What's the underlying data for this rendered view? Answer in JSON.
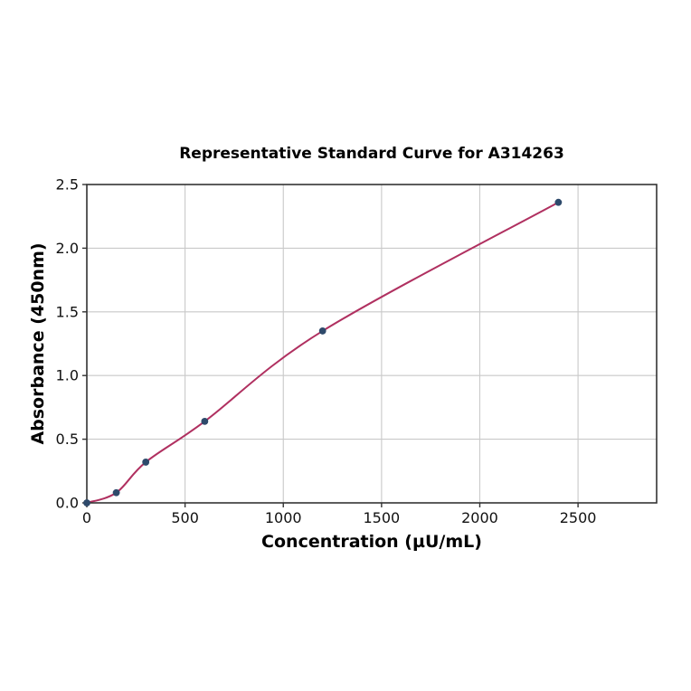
{
  "figure": {
    "background": "#ffffff"
  },
  "chart_data": {
    "type": "scatter",
    "title": "Representative Standard Curve for A314263",
    "xlabel": "Concentration (µU/mL)",
    "ylabel": "Absorbance (450nm)",
    "x": [
      0,
      150,
      300,
      600,
      1200,
      2400
    ],
    "y": [
      0.0,
      0.08,
      0.32,
      0.64,
      1.35,
      2.36
    ],
    "fit_curve": "smooth curve through all data points, starting at origin and ending at the last point",
    "xlim": [
      0,
      2900
    ],
    "ylim": [
      0,
      2.5
    ],
    "xticks": [
      0,
      500,
      1000,
      1500,
      2000,
      2500
    ],
    "yticks": [
      0.0,
      0.5,
      1.0,
      1.5,
      2.0,
      2.5
    ],
    "xtick_labels": [
      "0",
      "500",
      "1000",
      "1500",
      "2000",
      "2500"
    ],
    "ytick_labels": [
      "0.0",
      "0.5",
      "1.0",
      "1.5",
      "2.0",
      "2.5"
    ],
    "grid": true,
    "legend": null,
    "colors": {
      "marker": "#2e4a6b",
      "fit_line": "#b03060",
      "grid": "#c9c9c9",
      "spine": "#333333",
      "tick": "#333333",
      "text": "#000000",
      "background": "#ffffff"
    }
  }
}
